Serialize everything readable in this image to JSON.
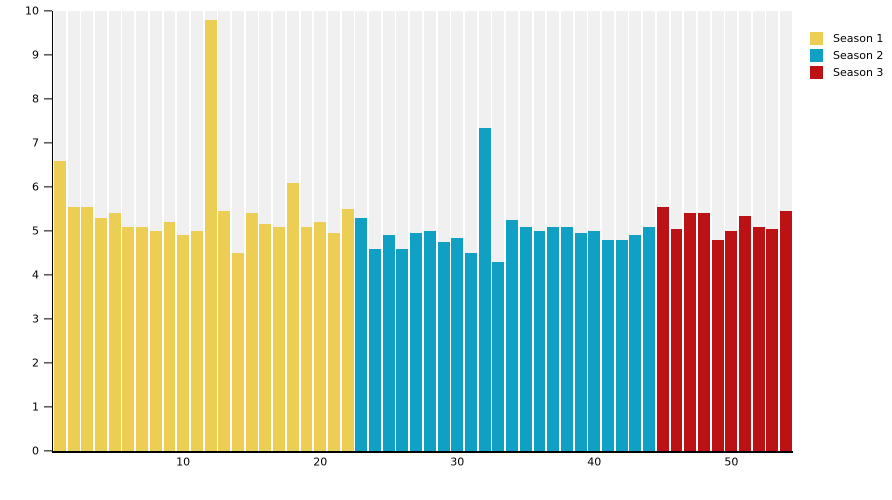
{
  "chart_data": {
    "type": "bar",
    "title": "",
    "xlabel": "",
    "ylabel": "",
    "ylim": [
      0,
      10
    ],
    "y_ticks": [
      0,
      1,
      2,
      3,
      4,
      5,
      6,
      7,
      8,
      9,
      10
    ],
    "x_ticks": [
      10,
      20,
      30,
      40,
      50
    ],
    "grid": false,
    "legend_position": "top-right",
    "background_bar_color": "#F0F0F0",
    "axis_color": "#000000",
    "series": [
      {
        "name": "Season 1",
        "color": "#EDCE55",
        "x_start": 1,
        "values": [
          6.6,
          5.55,
          5.55,
          5.3,
          5.4,
          5.1,
          5.1,
          5.0,
          5.2,
          4.9,
          5.0,
          9.8,
          5.45,
          4.5,
          5.4,
          5.15,
          5.1,
          6.1,
          5.1,
          5.2,
          4.95,
          5.5
        ]
      },
      {
        "name": "Season 2",
        "color": "#0FA0C4",
        "x_start": 23,
        "values": [
          5.3,
          4.6,
          4.9,
          4.6,
          4.95,
          5.0,
          4.75,
          4.85,
          4.5,
          7.35,
          4.3,
          5.25,
          5.1,
          5.0,
          5.1,
          5.1,
          4.95,
          5.0,
          4.8,
          4.8,
          4.9,
          5.1
        ]
      },
      {
        "name": "Season 3",
        "color": "#BC1215",
        "x_start": 45,
        "values": [
          5.55,
          5.05,
          5.4,
          5.4,
          4.8,
          5.0,
          5.35,
          5.1,
          5.05,
          5.45
        ]
      }
    ]
  }
}
